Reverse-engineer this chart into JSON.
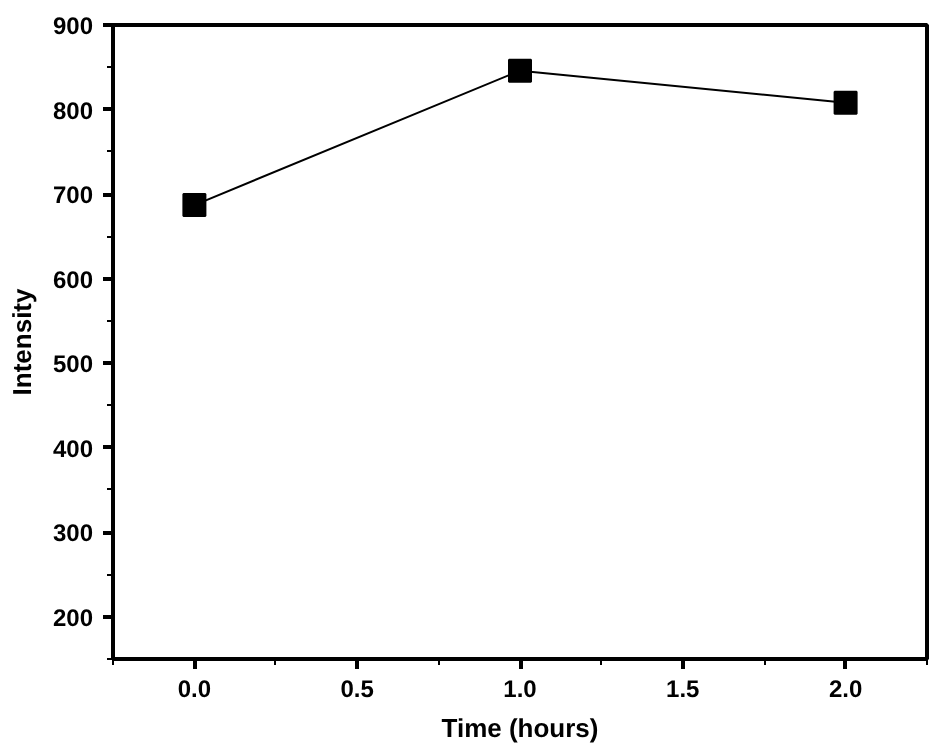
{
  "chart_data": {
    "type": "line",
    "xlabel": "Time (hours)",
    "ylabel": "Intensity",
    "x": [
      0.0,
      1.0,
      2.0
    ],
    "series": [
      {
        "color": "#000000",
        "values": [
          687,
          846,
          808
        ]
      }
    ],
    "marker": "square",
    "line_style": "solid",
    "xlim": [
      -0.25,
      2.25
    ],
    "ylim": [
      150,
      900
    ],
    "xticks": [
      {
        "value": 0,
        "label": "0.0"
      },
      {
        "value": 0.5,
        "label": "0.5"
      },
      {
        "value": 1,
        "label": "1.0"
      },
      {
        "value": 1.5,
        "label": "1.5"
      },
      {
        "value": 2,
        "label": "2.0"
      }
    ],
    "yticks": [
      200,
      300,
      400,
      500,
      600,
      700,
      800,
      900
    ],
    "grid": false
  }
}
